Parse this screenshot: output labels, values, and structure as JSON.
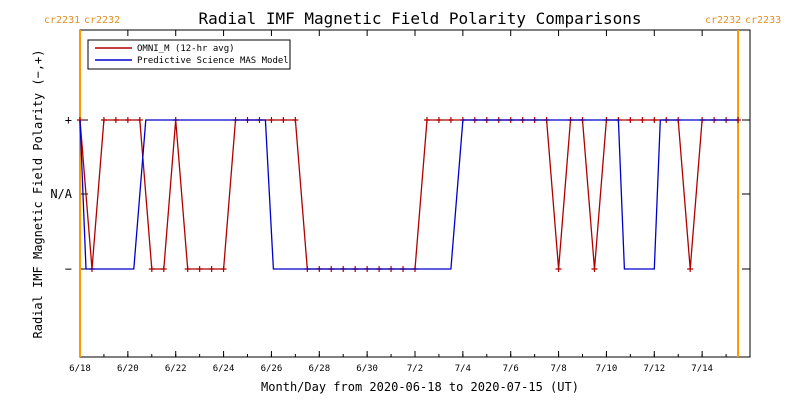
{
  "colors": {
    "omni": "#b00000",
    "mas": "#0000cc",
    "cr": "#ff9900",
    "axis": "#000000",
    "cr_text": "#e09020"
  },
  "chart_data": {
    "type": "line",
    "title": "Radial IMF Magnetic Field Polarity Comparisons",
    "xlabel": "Month/Day from 2020-06-18 to 2020-07-15 (UT)",
    "ylabel": "Radial IMF Magnetic Field Polarity (−,+)",
    "x_range": [
      "2020-06-18",
      "2020-07-16"
    ],
    "y_levels": [
      -1,
      0,
      1
    ],
    "y_tick_labels": [
      "−",
      "N/A",
      "+"
    ],
    "x_ticks": [
      {
        "date": "2020-06-18",
        "label": "6/18"
      },
      {
        "date": "2020-06-20",
        "label": "6/20"
      },
      {
        "date": "2020-06-22",
        "label": "6/22"
      },
      {
        "date": "2020-06-24",
        "label": "6/24"
      },
      {
        "date": "2020-06-26",
        "label": "6/26"
      },
      {
        "date": "2020-06-28",
        "label": "6/28"
      },
      {
        "date": "2020-06-30",
        "label": "6/30"
      },
      {
        "date": "2020-07-02",
        "label": "7/2"
      },
      {
        "date": "2020-07-04",
        "label": "7/4"
      },
      {
        "date": "2020-07-06",
        "label": "7/6"
      },
      {
        "date": "2020-07-08",
        "label": "7/8"
      },
      {
        "date": "2020-07-10",
        "label": "7/10"
      },
      {
        "date": "2020-07-12",
        "label": "7/12"
      },
      {
        "date": "2020-07-14",
        "label": "7/14"
      }
    ],
    "legend": {
      "position": "top-left"
    },
    "carrington": [
      {
        "date": "2020-06-18",
        "left_label": "cr2231",
        "right_label": "cr2232"
      },
      {
        "date": "2020-07-15T12:00",
        "left_label": "cr2232",
        "right_label": "cr2233"
      }
    ],
    "series": [
      {
        "name": "OMNI_M (12-hr avg)",
        "color": "#b00000",
        "markers": true,
        "points": [
          [
            "2020-06-18T00:00",
            1
          ],
          [
            "2020-06-18T12:00",
            -1
          ],
          [
            "2020-06-19T00:00",
            1
          ],
          [
            "2020-06-19T12:00",
            1
          ],
          [
            "2020-06-20T00:00",
            1
          ],
          [
            "2020-06-20T12:00",
            1
          ],
          [
            "2020-06-21T00:00",
            -1
          ],
          [
            "2020-06-21T12:00",
            -1
          ],
          [
            "2020-06-22T00:00",
            1
          ],
          [
            "2020-06-22T12:00",
            -1
          ],
          [
            "2020-06-23T00:00",
            -1
          ],
          [
            "2020-06-23T12:00",
            -1
          ],
          [
            "2020-06-24T00:00",
            -1
          ],
          [
            "2020-06-24T12:00",
            1
          ],
          [
            "2020-06-25T00:00",
            1
          ],
          [
            "2020-06-25T12:00",
            1
          ],
          [
            "2020-06-26T00:00",
            1
          ],
          [
            "2020-06-26T12:00",
            1
          ],
          [
            "2020-06-27T00:00",
            1
          ],
          [
            "2020-06-27T12:00",
            -1
          ],
          [
            "2020-06-28T00:00",
            -1
          ],
          [
            "2020-06-28T12:00",
            -1
          ],
          [
            "2020-06-29T00:00",
            -1
          ],
          [
            "2020-06-29T12:00",
            -1
          ],
          [
            "2020-06-30T00:00",
            -1
          ],
          [
            "2020-06-30T12:00",
            -1
          ],
          [
            "2020-07-01T00:00",
            -1
          ],
          [
            "2020-07-01T12:00",
            -1
          ],
          [
            "2020-07-02T00:00",
            -1
          ],
          [
            "2020-07-02T12:00",
            1
          ],
          [
            "2020-07-03T00:00",
            1
          ],
          [
            "2020-07-03T12:00",
            1
          ],
          [
            "2020-07-04T00:00",
            1
          ],
          [
            "2020-07-04T12:00",
            1
          ],
          [
            "2020-07-05T00:00",
            1
          ],
          [
            "2020-07-05T12:00",
            1
          ],
          [
            "2020-07-06T00:00",
            1
          ],
          [
            "2020-07-06T12:00",
            1
          ],
          [
            "2020-07-07T00:00",
            1
          ],
          [
            "2020-07-07T12:00",
            1
          ],
          [
            "2020-07-08T00:00",
            -1
          ],
          [
            "2020-07-08T12:00",
            1
          ],
          [
            "2020-07-09T00:00",
            1
          ],
          [
            "2020-07-09T12:00",
            -1
          ],
          [
            "2020-07-10T00:00",
            1
          ],
          [
            "2020-07-10T12:00",
            1
          ],
          [
            "2020-07-11T00:00",
            1
          ],
          [
            "2020-07-11T12:00",
            1
          ],
          [
            "2020-07-12T00:00",
            1
          ],
          [
            "2020-07-12T12:00",
            1
          ],
          [
            "2020-07-13T00:00",
            1
          ],
          [
            "2020-07-13T12:00",
            -1
          ],
          [
            "2020-07-14T00:00",
            1
          ],
          [
            "2020-07-14T12:00",
            1
          ],
          [
            "2020-07-15T00:00",
            1
          ],
          [
            "2020-07-15T12:00",
            1
          ]
        ]
      },
      {
        "name": "Predictive Science MAS Model",
        "color": "#0000cc",
        "markers": false,
        "points": [
          [
            "2020-06-18T00:00",
            1
          ],
          [
            "2020-06-18T06:00",
            -1
          ],
          [
            "2020-06-20T06:00",
            -1
          ],
          [
            "2020-06-20T18:00",
            1
          ],
          [
            "2020-06-25T18:00",
            1
          ],
          [
            "2020-06-26T02:00",
            -1
          ],
          [
            "2020-07-03T12:00",
            -1
          ],
          [
            "2020-07-04T00:00",
            1
          ],
          [
            "2020-07-10T12:00",
            1
          ],
          [
            "2020-07-10T18:00",
            -1
          ],
          [
            "2020-07-12T00:00",
            -1
          ],
          [
            "2020-07-12T06:00",
            1
          ],
          [
            "2020-07-15T12:00",
            1
          ]
        ]
      }
    ]
  }
}
